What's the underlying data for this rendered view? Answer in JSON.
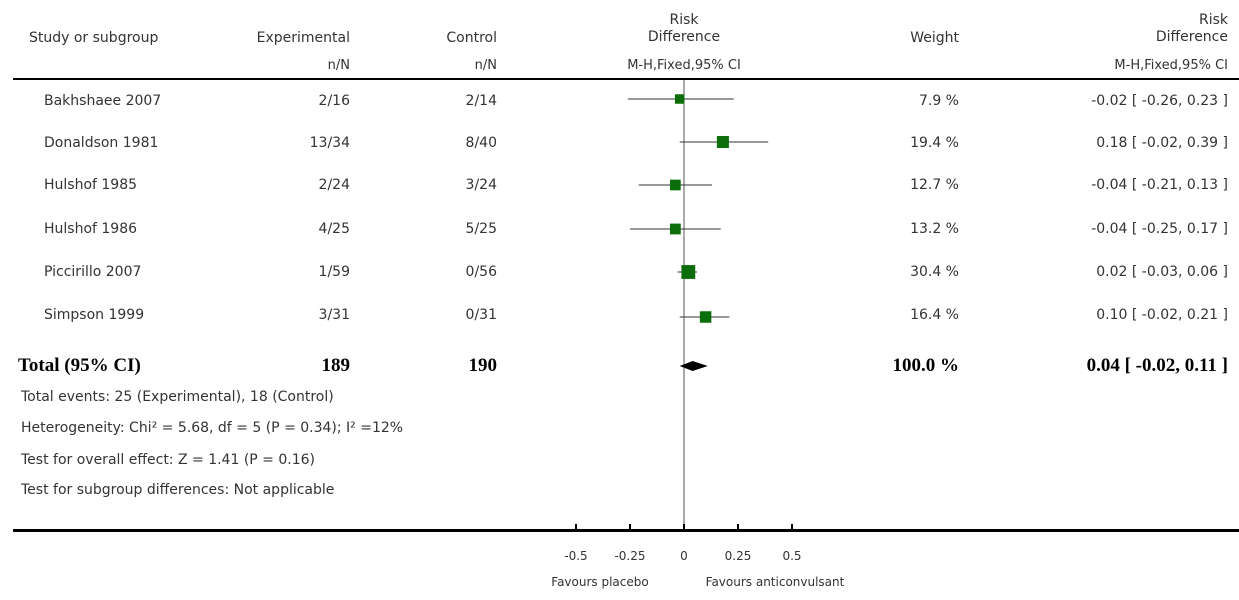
{
  "header": {
    "study": "Study or subgroup",
    "experimental": "Experimental",
    "control": "Control",
    "rd_top": "Risk",
    "rd_bottom": "Difference",
    "weight": "Weight",
    "rd2_top": "Risk",
    "rd2_bottom": "Difference",
    "exp_sub": "n/N",
    "ctl_sub": "n/N",
    "method": "M-H,Fixed,95% CI",
    "method2": "M-H,Fixed,95% CI"
  },
  "studies": [
    {
      "name": "Bakhshaee 2007",
      "exp": "2/16",
      "ctl": "2/14",
      "weight": "7.9 %",
      "ci_text": "-0.02 [ -0.26, 0.23 ]"
    },
    {
      "name": "Donaldson 1981",
      "exp": "13/34",
      "ctl": "8/40",
      "weight": "19.4 %",
      "ci_text": "0.18 [ -0.02, 0.39 ]"
    },
    {
      "name": "Hulshof 1985",
      "exp": "2/24",
      "ctl": "3/24",
      "weight": "12.7 %",
      "ci_text": "-0.04 [ -0.21, 0.13 ]"
    },
    {
      "name": "Hulshof 1986",
      "exp": "4/25",
      "ctl": "5/25",
      "weight": "13.2 %",
      "ci_text": "-0.04 [ -0.25, 0.17 ]"
    },
    {
      "name": "Piccirillo 2007",
      "exp": "1/59",
      "ctl": "0/56",
      "weight": "30.4 %",
      "ci_text": "0.02 [ -0.03, 0.06 ]"
    },
    {
      "name": "Simpson 1999",
      "exp": "3/31",
      "ctl": "0/31",
      "weight": "16.4 %",
      "ci_text": "0.10 [ -0.02, 0.21 ]"
    }
  ],
  "total": {
    "name": "Total (95% CI)",
    "exp": "189",
    "ctl": "190",
    "weight": "100.0 %",
    "ci_text": "0.04 [ -0.02, 0.11 ]"
  },
  "footnotes": {
    "events": "Total events: 25 (Experimental), 18 (Control)",
    "heterogeneity": "Heterogeneity: Chi² = 5.68, df = 5 (P = 0.34); I² =12%",
    "overall": "Test for overall effect: Z = 1.41  (P = 0.16)",
    "subgroup": "Test for subgroup differences: Not applicable"
  },
  "axis": {
    "favours_left": "Favours placebo",
    "favours_right": "Favours anticonvulsant"
  },
  "colors": {
    "marker": "#0b6e0b",
    "diamond": "#000000"
  },
  "chart_data": {
    "type": "forest",
    "xlim": [
      -0.5,
      0.5
    ],
    "ticks": [
      -0.5,
      -0.25,
      0,
      0.25,
      0.5
    ],
    "tick_labels": [
      "-0.5",
      "-0.25",
      "0",
      "0.25",
      "0.5"
    ],
    "studies": [
      {
        "name": "Bakhshaee 2007",
        "est": -0.02,
        "lo": -0.26,
        "hi": 0.23,
        "weight": 7.9
      },
      {
        "name": "Donaldson 1981",
        "est": 0.18,
        "lo": -0.02,
        "hi": 0.39,
        "weight": 19.4
      },
      {
        "name": "Hulshof 1985",
        "est": -0.04,
        "lo": -0.21,
        "hi": 0.13,
        "weight": 12.7
      },
      {
        "name": "Hulshof 1986",
        "est": -0.04,
        "lo": -0.25,
        "hi": 0.17,
        "weight": 13.2
      },
      {
        "name": "Piccirillo 2007",
        "est": 0.02,
        "lo": -0.03,
        "hi": 0.06,
        "weight": 30.4
      },
      {
        "name": "Simpson 1999",
        "est": 0.1,
        "lo": -0.02,
        "hi": 0.21,
        "weight": 16.4
      }
    ],
    "total": {
      "est": 0.04,
      "lo": -0.02,
      "hi": 0.11
    }
  }
}
